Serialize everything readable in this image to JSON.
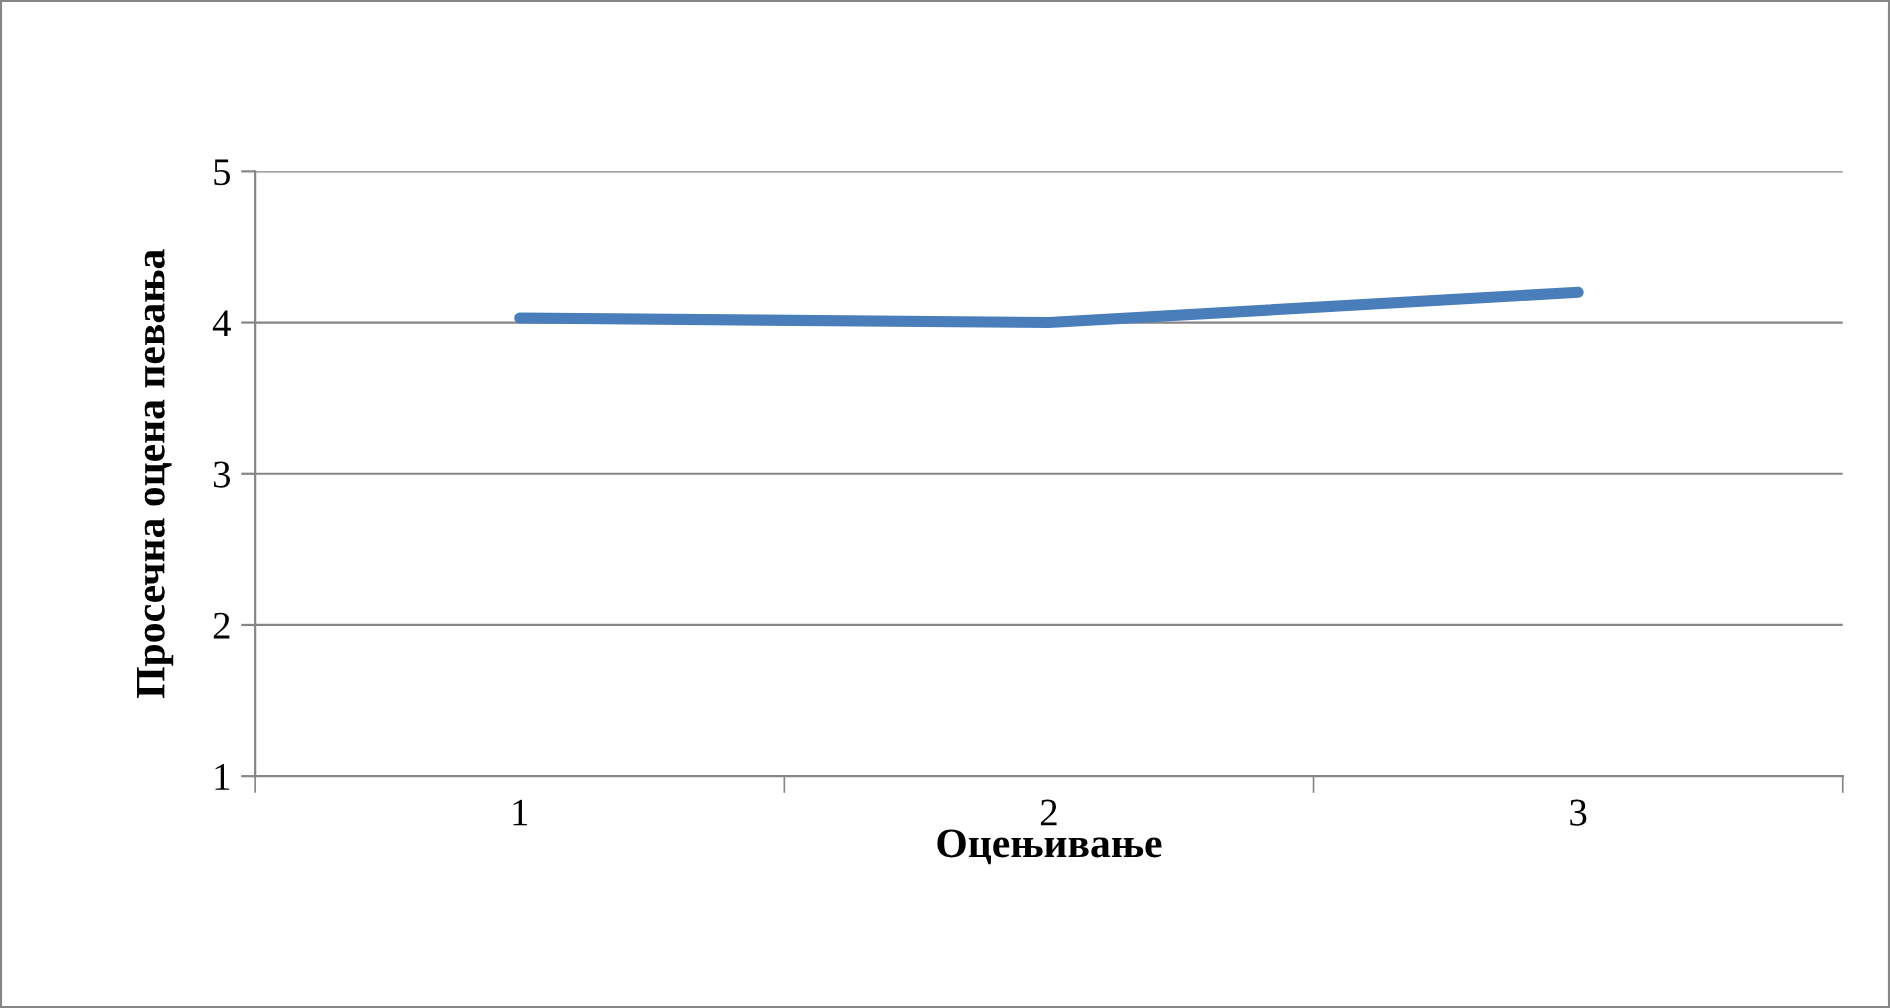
{
  "chart_data": {
    "type": "line",
    "xlabel": "Оцењивање",
    "ylabel": "Просечна оцена певања",
    "categories": [
      "1",
      "2",
      "3"
    ],
    "series": [
      {
        "color": "#4a7ebb",
        "values": [
          4.03,
          4.0,
          4.2
        ]
      }
    ],
    "ylim": [
      1,
      5
    ],
    "yticks": [
      1,
      2,
      3,
      4,
      5
    ],
    "grid": "y",
    "legend": false,
    "marker": "none",
    "line_style": "solid"
  }
}
